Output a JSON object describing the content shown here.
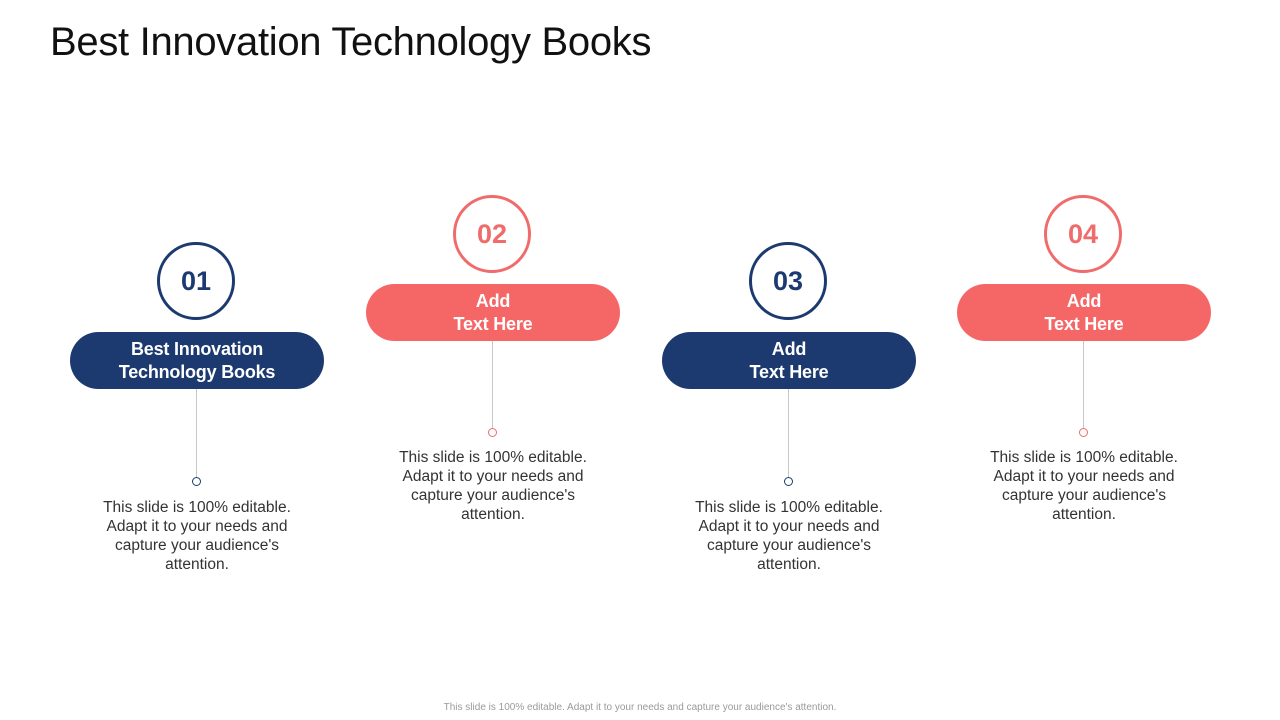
{
  "title": "Best Innovation Technology Books",
  "steps": [
    {
      "number": "01",
      "label_line1": "Best Innovation",
      "label_line2": "Technology Books",
      "desc": "This slide is 100% editable. Adapt it to your needs and capture your audience's attention."
    },
    {
      "number": "02",
      "label_line1": "Add",
      "label_line2": "Text Here",
      "desc": "This slide is 100% editable. Adapt it to your needs and capture your audience's attention."
    },
    {
      "number": "03",
      "label_line1": "Add",
      "label_line2": "Text Here",
      "desc": "This slide is 100% editable. Adapt it to your needs and capture your audience's attention."
    },
    {
      "number": "04",
      "label_line1": "Add",
      "label_line2": "Text Here",
      "desc": "This slide is 100% editable. Adapt it to your needs and capture your audience's attention."
    }
  ],
  "footer": "This slide is 100% editable. Adapt it to your needs and capture your audience's attention.",
  "colors": {
    "navy": "#1c3a6f",
    "coral": "#f56767"
  }
}
